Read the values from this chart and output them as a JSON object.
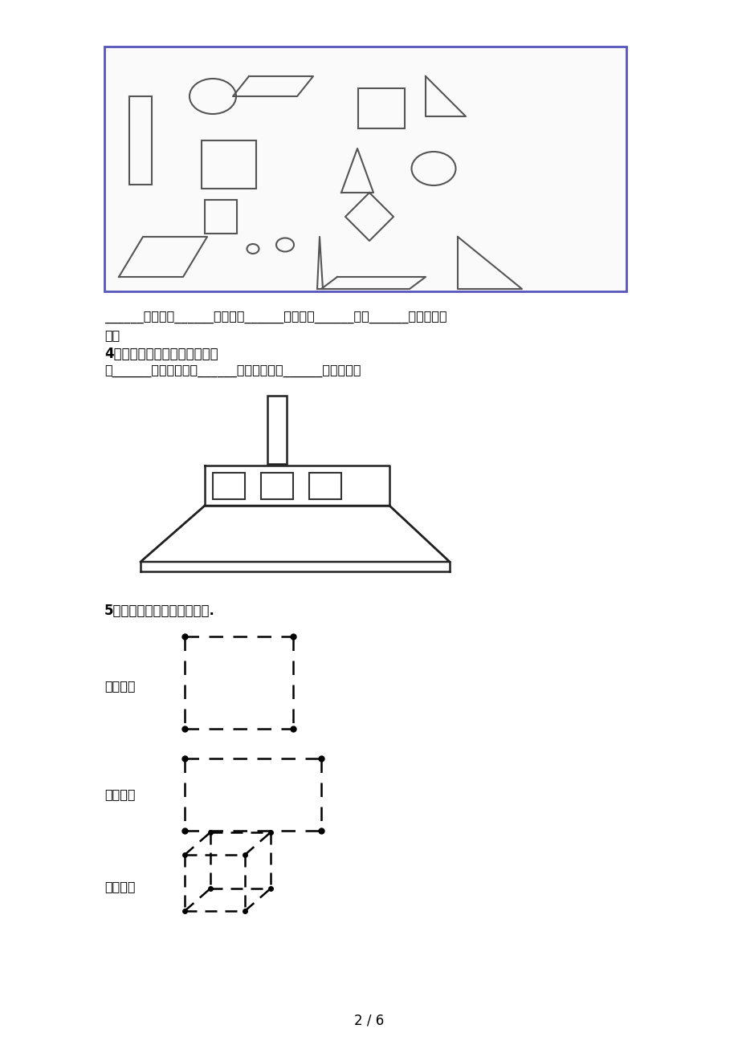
{
  "bg_color": "#ffffff",
  "page_num": "2 / 6",
  "box1_text_line1": "______个长方形______个正方形______个三角形______个圆______个平行四边",
  "box1_text_line2": "形。",
  "section4_bold": "4．动动脑，看一看，填一填。",
  "section4_text": "有______个正方形，有______个长方形，有______个三角形。",
  "section5_text": "5．把下面的点用直线连起来.",
  "label_square": "正方形：",
  "label_rect": "长方形：",
  "label_cube": "正方体："
}
